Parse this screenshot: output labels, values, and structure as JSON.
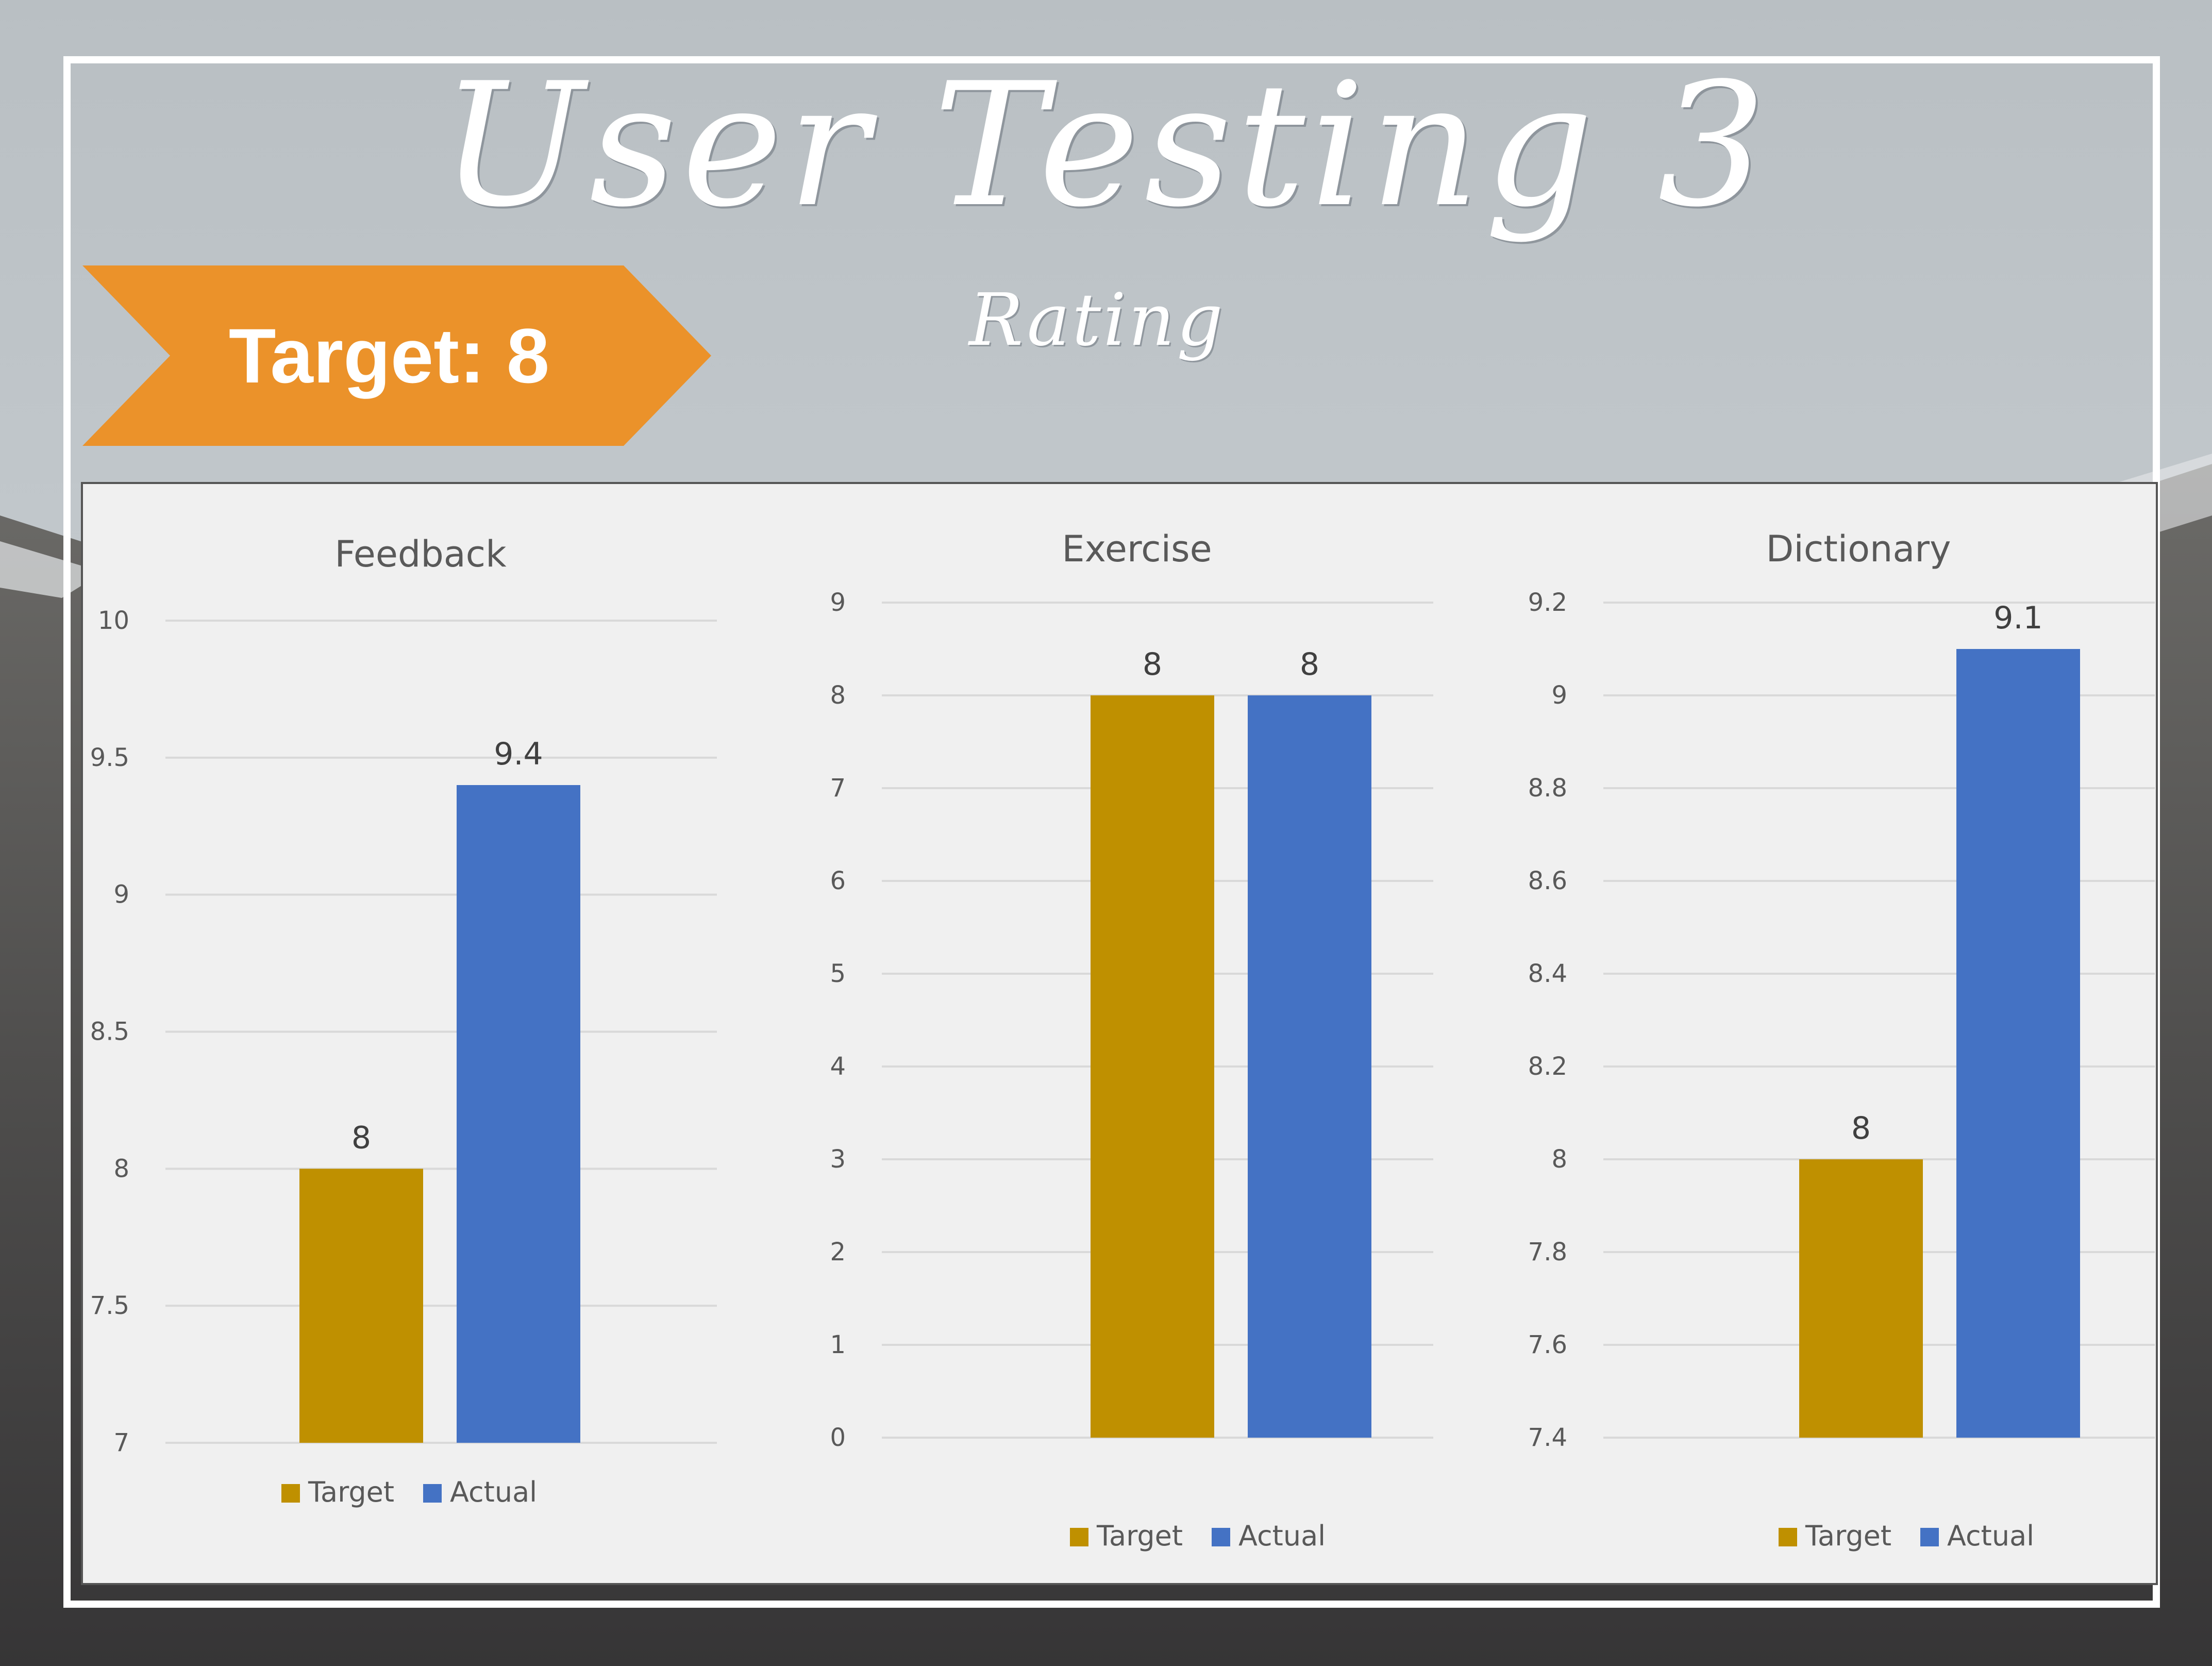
{
  "slide": {
    "title": "User Testing 3",
    "subtitle": "Rating",
    "target_label": "Target: 8"
  },
  "colors": {
    "target": "#BF9000",
    "actual": "#4472C4",
    "banner": "#EB922A",
    "panel": "#F0F0F0",
    "gridline": "#D9D9D9",
    "axis_text": "#595959",
    "label_text": "#404040"
  },
  "legend": {
    "target": "Target",
    "actual": "Actual"
  },
  "chart_data": [
    {
      "type": "bar",
      "title": "Feedback",
      "categories": [
        ""
      ],
      "series": [
        {
          "name": "Target",
          "values": [
            8
          ]
        },
        {
          "name": "Actual",
          "values": [
            9.4
          ]
        }
      ],
      "ylim": [
        7,
        10
      ],
      "yticks": [
        "7",
        "7.5",
        "8",
        "8.5",
        "9",
        "9.5",
        "10"
      ],
      "data_labels": [
        "8",
        "9.4"
      ],
      "grid": true,
      "legend_position": "bottom"
    },
    {
      "type": "bar",
      "title": "Exercise",
      "categories": [
        ""
      ],
      "series": [
        {
          "name": "Target",
          "values": [
            8
          ]
        },
        {
          "name": "Actual",
          "values": [
            8
          ]
        }
      ],
      "ylim": [
        0,
        9
      ],
      "yticks": [
        "0",
        "1",
        "2",
        "3",
        "4",
        "5",
        "6",
        "7",
        "8",
        "9"
      ],
      "data_labels": [
        "8",
        "8"
      ],
      "grid": true,
      "legend_position": "bottom"
    },
    {
      "type": "bar",
      "title": "Dictionary",
      "categories": [
        ""
      ],
      "series": [
        {
          "name": "Target",
          "values": [
            8
          ]
        },
        {
          "name": "Actual",
          "values": [
            9.1
          ]
        }
      ],
      "ylim": [
        7.4,
        9.2
      ],
      "yticks": [
        "7.4",
        "7.6",
        "7.8",
        "8",
        "8.2",
        "8.4",
        "8.6",
        "8.8",
        "9",
        "9.2"
      ],
      "data_labels": [
        "8",
        "9.1"
      ],
      "grid": true,
      "legend_position": "bottom"
    }
  ]
}
